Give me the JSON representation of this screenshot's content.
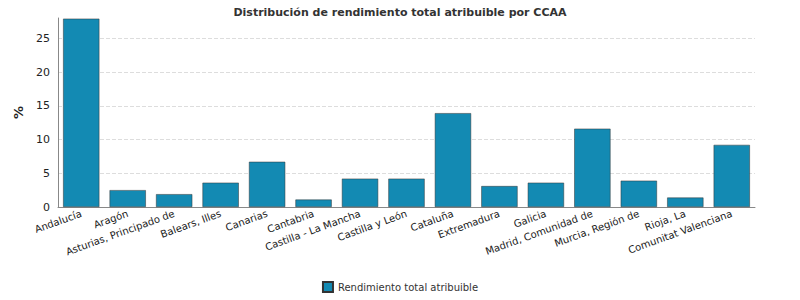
{
  "chart_data": {
    "type": "bar",
    "title": "Distribución de rendimiento total atribuible por CCAA",
    "y_label": "%",
    "categories": [
      "Andalucía",
      "Aragón",
      "Asturias, Principado de",
      "Balears, Illes",
      "Canarias",
      "Cantabria",
      "Castilla - La Mancha",
      "Castilla y León",
      "Cataluña",
      "Extremadura",
      "Galicia",
      "Madrid, Comunidad de",
      "Murcia, Región de",
      "Rioja, La",
      "Comunitat Valenciana"
    ],
    "series": [
      {
        "name": "Rendimiento total atribuible",
        "color": "#138ab3",
        "values": [
          27.9,
          2.5,
          1.9,
          3.6,
          6.7,
          1.1,
          4.2,
          4.2,
          13.9,
          3.1,
          3.6,
          11.6,
          3.9,
          1.4,
          9.2
        ]
      }
    ],
    "ylim": [
      0,
      28
    ],
    "yticks": [
      0,
      5,
      10,
      15,
      20,
      25
    ],
    "grid": true,
    "legend": "bottom"
  }
}
